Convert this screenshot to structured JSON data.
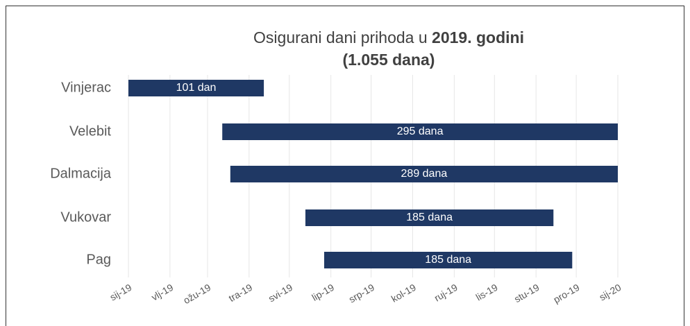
{
  "chart_data": {
    "type": "floating_bar",
    "title": "Osigurani dani prihoda u",
    "title_bold": "2019. godini",
    "subtitle": "(1.055 dana)",
    "categories": [
      "Vinjerac",
      "Velebit",
      "Dalmacija",
      "Vukovar",
      "Pag"
    ],
    "starts": [
      0,
      70,
      76,
      132,
      146
    ],
    "values": [
      101,
      295,
      289,
      185,
      185
    ],
    "value_labels": [
      "101 dan",
      "295 dana",
      "289 dana",
      "185 dana",
      "185 dana"
    ],
    "color": "#1f3864",
    "xlim": [
      0,
      365
    ],
    "xticks": [
      {
        "value": 0,
        "label": "sij-19"
      },
      {
        "value": 31,
        "label": "vlj-19"
      },
      {
        "value": 59,
        "label": "ožu-19"
      },
      {
        "value": 90,
        "label": "tra-19"
      },
      {
        "value": 120,
        "label": "svi-19"
      },
      {
        "value": 151,
        "label": "lip-19"
      },
      {
        "value": 181,
        "label": "srp-19"
      },
      {
        "value": 212,
        "label": "kol-19"
      },
      {
        "value": 243,
        "label": "ruj-19"
      },
      {
        "value": 273,
        "label": "lis-19"
      },
      {
        "value": 304,
        "label": "stu-19"
      },
      {
        "value": 334,
        "label": "pro-19"
      },
      {
        "value": 365,
        "label": "sij-20"
      }
    ],
    "grid": true
  }
}
